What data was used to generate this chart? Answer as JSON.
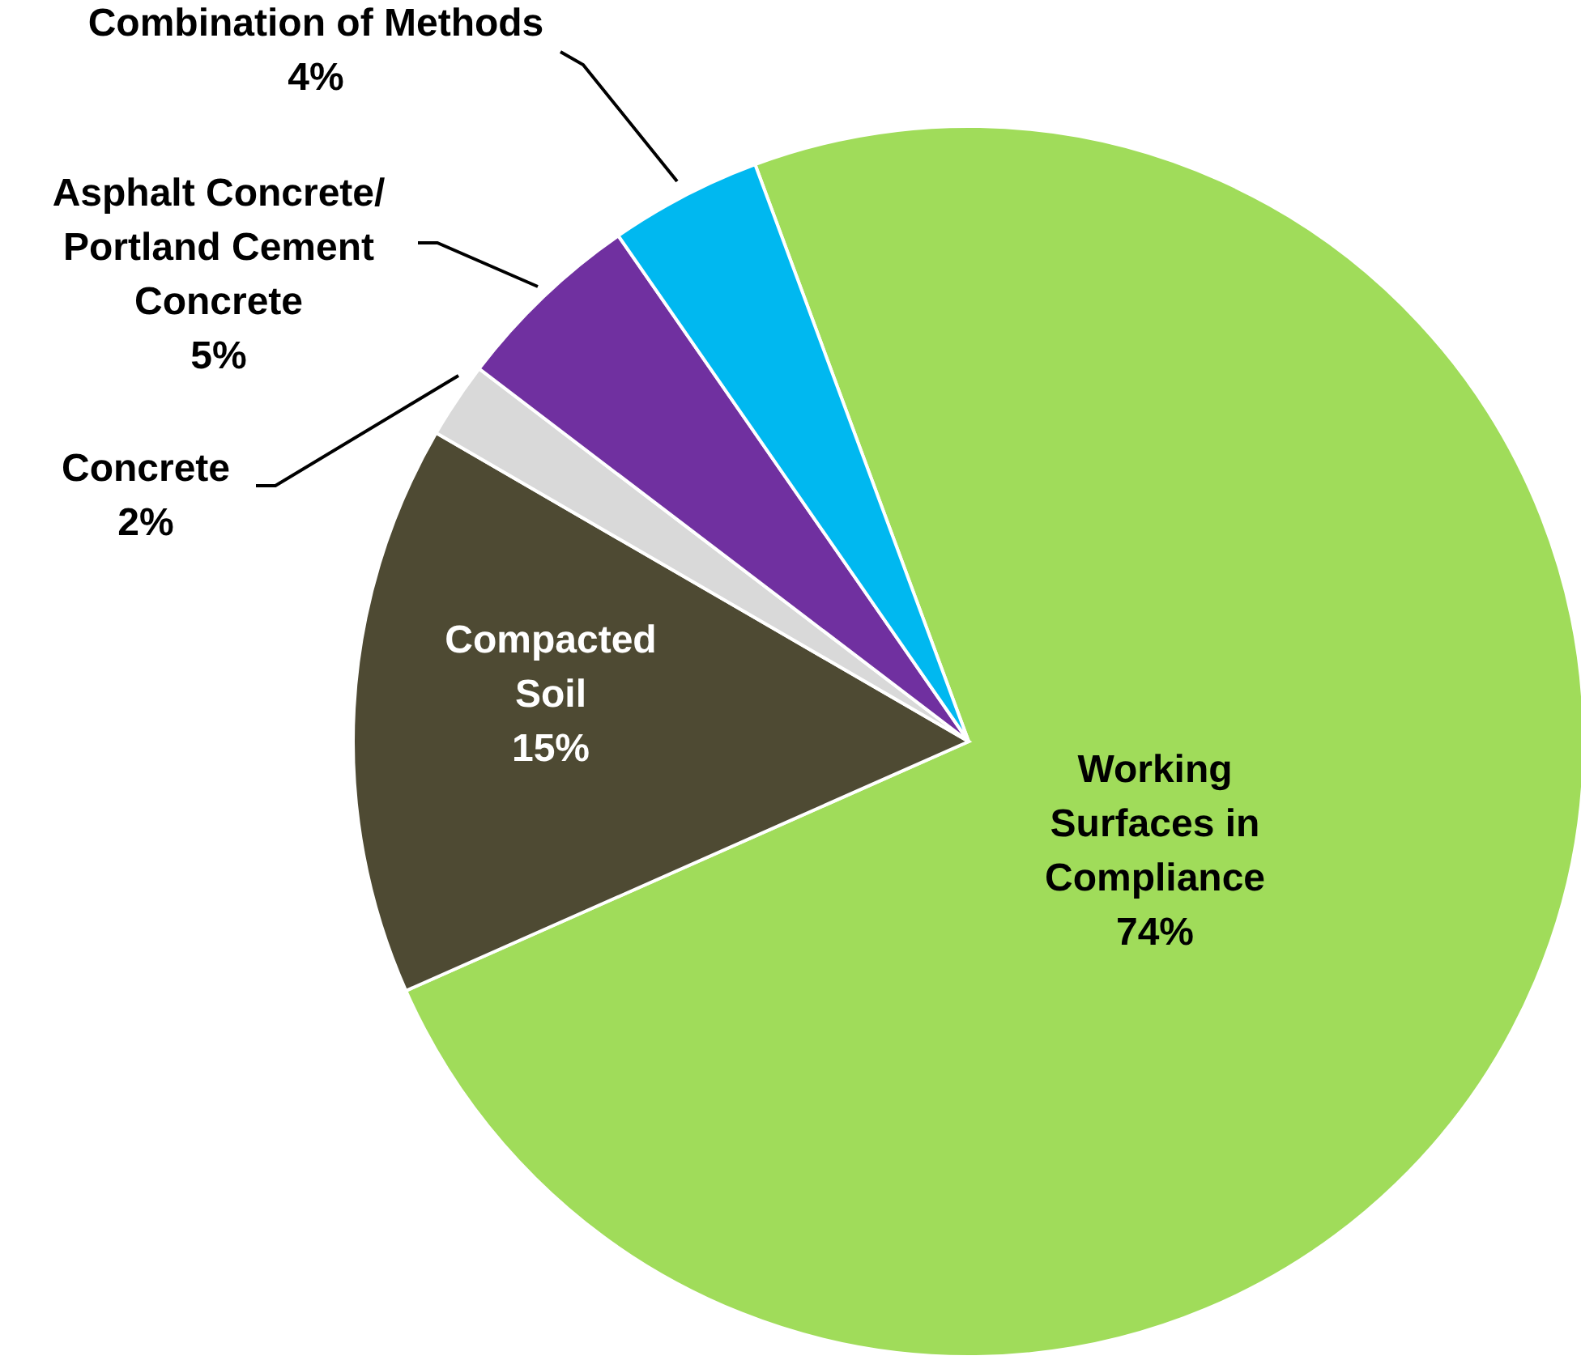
{
  "chart_data": {
    "type": "pie",
    "categories": [
      "Working Surfaces in Compliance",
      "Compacted Soil",
      "Concrete",
      "Asphalt Concrete/ Portland Cement Concrete",
      "Combination  of Methods"
    ],
    "values": [
      74,
      15,
      2,
      5,
      4
    ],
    "colors": [
      "#a0dc5a",
      "#4e4a33",
      "#d9d9d9",
      "#7030a0",
      "#00b8f0"
    ],
    "value_labels": [
      "74%",
      "15%",
      "2%",
      "5%",
      "4%"
    ]
  }
}
